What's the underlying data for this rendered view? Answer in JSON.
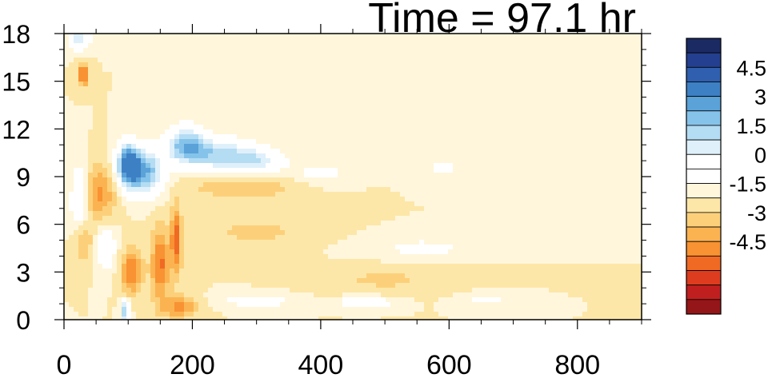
{
  "chart_data": {
    "type": "heatmap",
    "title": "Time = 97.1 hr",
    "xlabel": "",
    "ylabel": "",
    "xlim": [
      0,
      900
    ],
    "ylim": [
      0,
      18
    ],
    "x_ticks": [
      0,
      200,
      400,
      600,
      800
    ],
    "y_ticks": [
      0,
      3,
      6,
      9,
      12,
      15,
      18
    ],
    "x_tick_labels": [
      "0",
      "200",
      "400",
      "600",
      "800"
    ],
    "y_tick_labels": [
      "0",
      "3",
      "6",
      "9",
      "12",
      "15",
      "18"
    ],
    "colorbar": {
      "levels": [
        -5.25,
        -4.5,
        -3.75,
        -3,
        -2.25,
        -1.5,
        -0.75,
        0,
        0.75,
        1.5,
        2.25,
        3,
        3.75,
        4.5,
        5.25
      ],
      "tick_labels": [
        "4.5",
        "3",
        "1.5",
        "0",
        "-1.5",
        "-3",
        "-4.5"
      ],
      "tick_values": [
        4.5,
        3,
        1.5,
        0,
        -1.5,
        -3,
        -4.5
      ],
      "colors": [
        "#1b2a63",
        "#243f8f",
        "#2f5fae",
        "#3e80c4",
        "#5aa2d8",
        "#86c3ea",
        "#b4dcf3",
        "#dff0fa",
        "#ffffff",
        "#ffffff",
        "#fff6dc",
        "#fde7a8",
        "#fcd07a",
        "#fbb351",
        "#f89232",
        "#f06a24",
        "#dd3c1f",
        "#c01f20",
        "#951618"
      ]
    },
    "features": [
      {
        "x": 100,
        "y": 9.8,
        "value": 5.5,
        "sx": 12,
        "sy": 0.9
      },
      {
        "x": 125,
        "y": 9.3,
        "value": 4.5,
        "sx": 22,
        "sy": 1.0
      },
      {
        "x": 190,
        "y": 11.0,
        "value": 4.0,
        "sx": 22,
        "sy": 0.8
      },
      {
        "x": 240,
        "y": 10.4,
        "value": 3.2,
        "sx": 35,
        "sy": 0.7
      },
      {
        "x": 300,
        "y": 10.0,
        "value": 2.5,
        "sx": 30,
        "sy": 0.6
      },
      {
        "x": 25,
        "y": 17.7,
        "value": 3.0,
        "sx": 10,
        "sy": 0.5
      },
      {
        "x": 25,
        "y": 7.5,
        "value": 2.5,
        "sx": 10,
        "sy": 1.5
      },
      {
        "x": 65,
        "y": 4.5,
        "value": 1.8,
        "sx": 12,
        "sy": 1.0
      },
      {
        "x": 30,
        "y": 15.4,
        "value": -3.5,
        "sx": 6,
        "sy": 0.5
      },
      {
        "x": 55,
        "y": 8.0,
        "value": -2.5,
        "sx": 18,
        "sy": 1.2
      },
      {
        "x": 105,
        "y": 3.0,
        "value": -3.0,
        "sx": 12,
        "sy": 1.0
      },
      {
        "x": 150,
        "y": 3.5,
        "value": -3.2,
        "sx": 10,
        "sy": 1.6
      },
      {
        "x": 175,
        "y": 5.0,
        "value": -3.5,
        "sx": 6,
        "sy": 1.5
      },
      {
        "x": 180,
        "y": 0.8,
        "value": -2.5,
        "sx": 20,
        "sy": 0.5
      },
      {
        "x": 30,
        "y": 5.0,
        "value": -2.0,
        "sx": 10,
        "sy": 1.0
      },
      {
        "x": 280,
        "y": 8.3,
        "value": -1.5,
        "sx": 60,
        "sy": 0.5
      },
      {
        "x": 95,
        "y": 0.5,
        "value": 4.0,
        "sx": 5,
        "sy": 0.5
      },
      {
        "x": 300,
        "y": 1.2,
        "value": 1.5,
        "sx": 40,
        "sy": 0.3
      },
      {
        "x": 470,
        "y": 1.1,
        "value": 2.0,
        "sx": 30,
        "sy": 0.25
      },
      {
        "x": 400,
        "y": 9.2,
        "value": 1.2,
        "sx": 30,
        "sy": 0.5
      },
      {
        "x": 560,
        "y": 4.5,
        "value": 1.0,
        "sx": 60,
        "sy": 0.5
      },
      {
        "x": 300,
        "y": 5.5,
        "value": -1.0,
        "sx": 60,
        "sy": 0.6
      },
      {
        "x": 500,
        "y": 2.5,
        "value": -0.9,
        "sx": 70,
        "sy": 0.6
      },
      {
        "x": 660,
        "y": 1.2,
        "value": 1.0,
        "sx": 30,
        "sy": 0.3
      },
      {
        "x": 590,
        "y": 9.5,
        "value": 0.9,
        "sx": 30,
        "sy": 0.5
      }
    ]
  }
}
